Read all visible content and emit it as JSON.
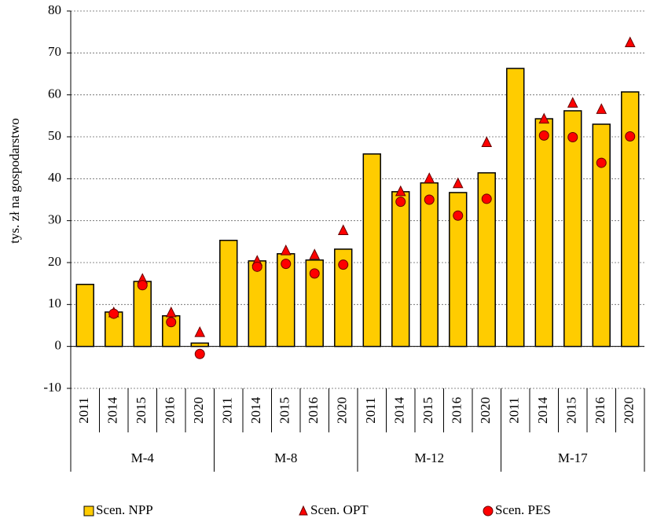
{
  "chart_data": {
    "type": "bar",
    "y_label": "tys. zł na gospodarstwo",
    "categories": [
      "2011",
      "2014",
      "2015",
      "2016",
      "2020",
      "2011",
      "2014",
      "2015",
      "2016",
      "2020",
      "2011",
      "2014",
      "2015",
      "2016",
      "2020",
      "2011",
      "2014",
      "2015",
      "2016",
      "2020"
    ],
    "groups": [
      "M-4",
      "M-8",
      "M-12",
      "M-17"
    ],
    "series": [
      {
        "name": "Scen. NPP",
        "color": "#FFCC00",
        "marker": "bar",
        "values": [
          14.8,
          8.2,
          15.5,
          7.3,
          0.8,
          25.3,
          20.4,
          22.1,
          20.6,
          23.2,
          45.9,
          36.9,
          39.0,
          36.7,
          41.4,
          66.3,
          54.3,
          56.2,
          53.0,
          60.7
        ]
      },
      {
        "name": "Scen. OPT",
        "color": "#FF0000",
        "marker": "triangle",
        "values": [
          null,
          8.0,
          16.0,
          8.0,
          3.3,
          null,
          20.3,
          22.8,
          21.8,
          27.6,
          null,
          36.9,
          40.0,
          38.8,
          48.6,
          null,
          54.2,
          58.0,
          56.5,
          72.4
        ]
      },
      {
        "name": "Scen. PES",
        "color": "#FF0000",
        "marker": "circle",
        "values": [
          null,
          7.8,
          14.6,
          5.8,
          -1.8,
          null,
          19.0,
          19.7,
          17.4,
          19.5,
          null,
          34.5,
          35.0,
          31.2,
          35.2,
          null,
          50.3,
          49.9,
          43.8,
          50.1
        ]
      }
    ],
    "ylim": [
      -10,
      80
    ],
    "yticks": [
      -10,
      0,
      10,
      20,
      30,
      40,
      50,
      60,
      70,
      80
    ],
    "grid": true
  }
}
